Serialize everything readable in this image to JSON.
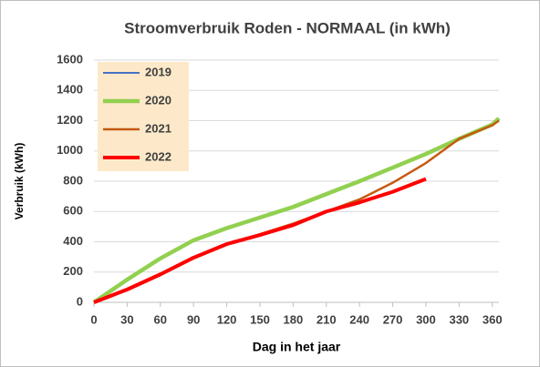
{
  "chart_data": {
    "type": "line",
    "title": "Stroomverbruik Roden - NORMAAL  (in kWh)",
    "xlabel": "Dag in het jaar",
    "ylabel": "Verbruik (kWh)",
    "x": [
      0,
      30,
      60,
      90,
      120,
      150,
      180,
      210,
      240,
      270,
      300,
      330,
      360,
      366
    ],
    "series": [
      {
        "name": "2019",
        "color": "#4472c4",
        "line_width": 2,
        "values": [
          0,
          150,
          290,
          410,
          490,
          560,
          630,
          715,
          800,
          890,
          980,
          1080,
          1175,
          1215
        ]
      },
      {
        "name": "2020",
        "color": "#92d050",
        "line_width": 4.5,
        "values": [
          0,
          150,
          290,
          410,
          490,
          560,
          630,
          715,
          800,
          890,
          980,
          1080,
          1175,
          1215
        ]
      },
      {
        "name": "2021",
        "color": "#c55a11",
        "line_width": 2.5,
        "values": [
          0,
          80,
          180,
          290,
          380,
          450,
          520,
          600,
          680,
          790,
          920,
          1080,
          1170,
          1200
        ]
      },
      {
        "name": "2022",
        "color": "#ff0000",
        "line_width": 4,
        "values": [
          0,
          85,
          185,
          295,
          385,
          445,
          510,
          600,
          660,
          730,
          815,
          null,
          null,
          null
        ]
      }
    ],
    "xlim": [
      0,
      366
    ],
    "ylim": [
      0,
      1600
    ],
    "xticks": [
      0,
      30,
      60,
      90,
      120,
      150,
      180,
      210,
      240,
      270,
      300,
      330,
      360
    ],
    "yticks": [
      0,
      200,
      400,
      600,
      800,
      1000,
      1200,
      1400,
      1600
    ],
    "grid": true,
    "legend": "upper left",
    "legend_background": "#fde9c9"
  }
}
